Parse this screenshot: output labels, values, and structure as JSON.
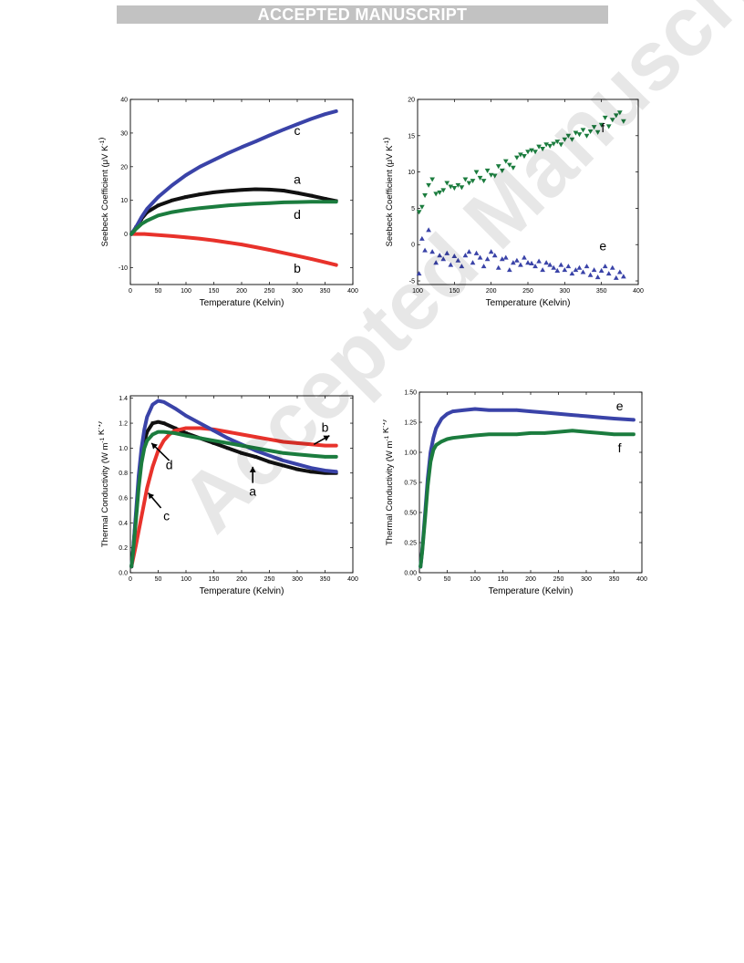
{
  "banner": {
    "text": "ACCEPTED MANUSCRIPT"
  },
  "watermark": {
    "text": "Accepted Manuscript"
  },
  "chart_data": [
    {
      "type": "line",
      "xlabel": "Temperature (Kelvin)",
      "ylabel": "Seebeck Coefficient (μV K⁻¹)",
      "xlim": [
        0,
        400
      ],
      "ylim": [
        -15,
        40
      ],
      "xticks": [
        0,
        50,
        100,
        150,
        200,
        250,
        300,
        350,
        400
      ],
      "yticks": [
        -10,
        0,
        10,
        20,
        30,
        40
      ],
      "series": [
        {
          "name": "a",
          "color": "#111111",
          "marker": "square",
          "x": [
            2,
            10,
            20,
            30,
            50,
            75,
            100,
            125,
            150,
            175,
            200,
            225,
            250,
            275,
            300,
            325,
            350,
            370
          ],
          "y": [
            0,
            2,
            4.5,
            6.5,
            8.5,
            10,
            11,
            11.8,
            12.4,
            12.8,
            13.1,
            13.3,
            13.2,
            12.9,
            12.2,
            11.4,
            10.5,
            9.8
          ]
        },
        {
          "name": "b",
          "color": "#e8322b",
          "marker": "circle",
          "x": [
            2,
            25,
            50,
            75,
            100,
            125,
            150,
            175,
            200,
            225,
            250,
            275,
            300,
            325,
            350,
            370
          ],
          "y": [
            0,
            0,
            -0.3,
            -0.6,
            -1,
            -1.4,
            -1.9,
            -2.5,
            -3.1,
            -3.9,
            -4.7,
            -5.6,
            -6.5,
            -7.4,
            -8.4,
            -9.2
          ]
        },
        {
          "name": "c",
          "color": "#3a43a8",
          "marker": "triangle-up",
          "x": [
            2,
            10,
            20,
            30,
            50,
            75,
            100,
            125,
            150,
            175,
            200,
            225,
            250,
            275,
            300,
            325,
            350,
            370
          ],
          "y": [
            0,
            2,
            5,
            7.5,
            11,
            14.5,
            17.5,
            20,
            22,
            24,
            25.8,
            27.5,
            29.3,
            31,
            32.6,
            34.2,
            35.6,
            36.5
          ]
        },
        {
          "name": "d",
          "color": "#1b7c3e",
          "marker": "triangle-down",
          "x": [
            2,
            10,
            20,
            30,
            50,
            75,
            100,
            125,
            150,
            175,
            200,
            225,
            250,
            275,
            300,
            325,
            350,
            370
          ],
          "y": [
            0,
            1.5,
            3,
            4,
            5.5,
            6.5,
            7.2,
            7.7,
            8.1,
            8.5,
            8.8,
            9,
            9.2,
            9.4,
            9.5,
            9.6,
            9.6,
            9.6
          ]
        }
      ],
      "labels": [
        {
          "text": "c",
          "x": 300,
          "y": 29.5
        },
        {
          "text": "a",
          "x": 300,
          "y": 15
        },
        {
          "text": "d",
          "x": 300,
          "y": 4.5
        },
        {
          "text": "b",
          "x": 300,
          "y": -11.5
        }
      ]
    },
    {
      "type": "scatter",
      "xlabel": "Temperature (Kelvin)",
      "ylabel": "Seebeck Coefficient (μV K⁻¹)",
      "xlim": [
        100,
        400
      ],
      "ylim": [
        -5.5,
        20
      ],
      "xticks": [
        100,
        150,
        200,
        250,
        300,
        350,
        400
      ],
      "yticks": [
        -5,
        0,
        5,
        10,
        15,
        20
      ],
      "series": [
        {
          "name": "f",
          "color": "#1b7c3e",
          "marker": "triangle-down",
          "x": [
            102,
            106,
            110,
            115,
            120,
            125,
            130,
            135,
            140,
            145,
            150,
            155,
            160,
            165,
            170,
            175,
            180,
            185,
            190,
            195,
            200,
            205,
            210,
            215,
            220,
            225,
            230,
            235,
            240,
            245,
            250,
            255,
            260,
            265,
            270,
            275,
            280,
            285,
            290,
            295,
            300,
            305,
            310,
            315,
            320,
            325,
            330,
            335,
            340,
            345,
            350,
            355,
            360,
            365,
            370,
            375,
            380
          ],
          "y": [
            4.5,
            5.2,
            6.8,
            8.2,
            9.0,
            7.0,
            7.2,
            7.5,
            8.5,
            8.0,
            7.8,
            8.2,
            7.9,
            9.0,
            8.5,
            8.8,
            10.0,
            9.2,
            8.8,
            10.2,
            9.6,
            9.5,
            10.8,
            10.2,
            11.5,
            11.0,
            10.6,
            12.0,
            12.4,
            12.2,
            12.8,
            13.0,
            12.8,
            13.5,
            13.2,
            13.8,
            13.6,
            13.9,
            14.2,
            13.8,
            14.5,
            15.0,
            14.5,
            15.4,
            15.2,
            15.8,
            15.0,
            15.6,
            16.2,
            15.5,
            16.5,
            17.5,
            16.3,
            17.2,
            17.8,
            18.2,
            17.0
          ]
        },
        {
          "name": "e",
          "color": "#3a43a8",
          "marker": "triangle-up",
          "x": [
            102,
            106,
            110,
            115,
            120,
            125,
            130,
            135,
            140,
            145,
            150,
            155,
            160,
            165,
            170,
            175,
            180,
            185,
            190,
            195,
            200,
            205,
            210,
            215,
            220,
            225,
            230,
            235,
            240,
            245,
            250,
            255,
            260,
            265,
            270,
            275,
            280,
            285,
            290,
            295,
            300,
            305,
            310,
            315,
            320,
            325,
            330,
            335,
            340,
            345,
            350,
            355,
            360,
            365,
            370,
            375,
            380
          ],
          "y": [
            -4.0,
            0.8,
            -0.8,
            2.0,
            -1.0,
            -2.5,
            -1.5,
            -2.0,
            -1.2,
            -2.8,
            -1.6,
            -2.2,
            -3.0,
            -1.5,
            -1.0,
            -2.5,
            -1.2,
            -1.8,
            -3.0,
            -2.0,
            -1.0,
            -1.5,
            -3.2,
            -2.0,
            -1.8,
            -3.5,
            -2.5,
            -2.2,
            -2.8,
            -1.8,
            -2.5,
            -2.6,
            -3.0,
            -2.3,
            -3.5,
            -2.5,
            -2.8,
            -3.2,
            -3.6,
            -2.8,
            -3.5,
            -3.0,
            -4.0,
            -3.5,
            -3.2,
            -3.8,
            -3.0,
            -4.2,
            -3.5,
            -4.5,
            -3.6,
            -3.0,
            -4.0,
            -3.2,
            -4.6,
            -3.8,
            -4.4
          ]
        }
      ],
      "labels": [
        {
          "text": "f",
          "x": 352,
          "y": 15.5
        },
        {
          "text": "e",
          "x": 352,
          "y": -0.8
        }
      ]
    },
    {
      "type": "line",
      "xlabel": "Temperature (Kelvin)",
      "ylabel": "Thermal Conductivity (W m⁻¹ K⁻¹)",
      "xlim": [
        0,
        400
      ],
      "ylim": [
        0,
        1.42
      ],
      "xticks": [
        0,
        50,
        100,
        150,
        200,
        250,
        300,
        350,
        400
      ],
      "yticks": [
        "0.0",
        "0.2",
        "0.4",
        "0.6",
        "0.8",
        "1.0",
        "1.2",
        "1.4"
      ],
      "series": [
        {
          "name": "a",
          "color": "#111111",
          "marker": "square",
          "x": [
            2,
            5,
            10,
            15,
            20,
            25,
            30,
            40,
            50,
            60,
            80,
            100,
            125,
            150,
            175,
            200,
            225,
            250,
            275,
            300,
            325,
            350,
            370
          ],
          "y": [
            0.05,
            0.18,
            0.45,
            0.72,
            0.92,
            1.05,
            1.13,
            1.2,
            1.21,
            1.2,
            1.16,
            1.12,
            1.08,
            1.04,
            1.0,
            0.96,
            0.93,
            0.89,
            0.86,
            0.83,
            0.81,
            0.8,
            0.8
          ]
        },
        {
          "name": "b",
          "color": "#e8322b",
          "marker": "circle",
          "x": [
            2,
            10,
            20,
            30,
            40,
            50,
            60,
            70,
            80,
            100,
            125,
            150,
            175,
            200,
            225,
            250,
            275,
            300,
            325,
            350,
            370
          ],
          "y": [
            0.05,
            0.22,
            0.45,
            0.68,
            0.85,
            0.98,
            1.06,
            1.11,
            1.14,
            1.16,
            1.16,
            1.15,
            1.13,
            1.11,
            1.09,
            1.07,
            1.05,
            1.04,
            1.03,
            1.02,
            1.02
          ]
        },
        {
          "name": "c",
          "color": "#3a43a8",
          "marker": "triangle-up",
          "x": [
            2,
            5,
            10,
            15,
            20,
            25,
            30,
            40,
            50,
            60,
            80,
            100,
            125,
            150,
            175,
            200,
            225,
            250,
            275,
            300,
            325,
            350,
            370
          ],
          "y": [
            0.05,
            0.18,
            0.48,
            0.78,
            1.0,
            1.15,
            1.25,
            1.35,
            1.38,
            1.37,
            1.32,
            1.26,
            1.2,
            1.14,
            1.08,
            1.03,
            0.98,
            0.94,
            0.9,
            0.87,
            0.84,
            0.82,
            0.81
          ]
        },
        {
          "name": "d",
          "color": "#1b7c3e",
          "marker": "triangle-down",
          "x": [
            2,
            5,
            10,
            15,
            20,
            25,
            30,
            40,
            50,
            60,
            80,
            100,
            125,
            150,
            175,
            200,
            225,
            250,
            275,
            300,
            325,
            350,
            370
          ],
          "y": [
            0.05,
            0.17,
            0.42,
            0.68,
            0.88,
            1.0,
            1.06,
            1.11,
            1.13,
            1.13,
            1.12,
            1.1,
            1.08,
            1.06,
            1.04,
            1.02,
            1.0,
            0.98,
            0.96,
            0.95,
            0.94,
            0.93,
            0.93
          ]
        }
      ],
      "labels": [
        {
          "text": "b",
          "x": 350,
          "y": 1.13
        },
        {
          "text": "d",
          "x": 70,
          "y": 0.83
        },
        {
          "text": "a",
          "x": 220,
          "y": 0.62
        },
        {
          "text": "c",
          "x": 65,
          "y": 0.42
        }
      ],
      "arrows": [
        {
          "from": [
            330,
            1.03
          ],
          "to": [
            358,
            1.1
          ]
        },
        {
          "from": [
            70,
            0.9
          ],
          "to": [
            38,
            1.04
          ]
        },
        {
          "from": [
            220,
            0.72
          ],
          "to": [
            220,
            0.85
          ]
        },
        {
          "from": [
            55,
            0.52
          ],
          "to": [
            32,
            0.64
          ]
        }
      ]
    },
    {
      "type": "line",
      "xlabel": "Temperature (Kelvin)",
      "ylabel": "Thermal Conductivity (W m⁻¹ K⁻¹)",
      "xlim": [
        0,
        400
      ],
      "ylim": [
        0,
        1.5
      ],
      "xticks": [
        0,
        50,
        100,
        150,
        200,
        250,
        300,
        350,
        400
      ],
      "yticks": [
        "0.00",
        "0.25",
        "0.50",
        "0.75",
        "1.00",
        "1.25",
        "1.50"
      ],
      "series": [
        {
          "name": "e",
          "color": "#3a43a8",
          "marker": "triangle-up",
          "x": [
            2,
            5,
            10,
            15,
            20,
            25,
            30,
            40,
            50,
            60,
            80,
            100,
            125,
            150,
            175,
            200,
            225,
            250,
            275,
            300,
            325,
            350,
            385
          ],
          "y": [
            0.05,
            0.18,
            0.48,
            0.78,
            1.0,
            1.12,
            1.2,
            1.28,
            1.32,
            1.34,
            1.35,
            1.36,
            1.35,
            1.35,
            1.35,
            1.34,
            1.33,
            1.32,
            1.31,
            1.3,
            1.29,
            1.28,
            1.27
          ]
        },
        {
          "name": "f",
          "color": "#1b7c3e",
          "marker": "triangle-down",
          "x": [
            2,
            5,
            10,
            15,
            20,
            25,
            30,
            40,
            50,
            60,
            80,
            100,
            125,
            150,
            175,
            200,
            225,
            250,
            275,
            300,
            325,
            350,
            385
          ],
          "y": [
            0.05,
            0.17,
            0.44,
            0.72,
            0.92,
            1.02,
            1.06,
            1.09,
            1.11,
            1.12,
            1.13,
            1.14,
            1.15,
            1.15,
            1.15,
            1.16,
            1.16,
            1.17,
            1.18,
            1.17,
            1.16,
            1.15,
            1.15
          ]
        }
      ],
      "labels": [
        {
          "text": "e",
          "x": 360,
          "y": 1.35
        },
        {
          "text": "f",
          "x": 360,
          "y": 1.0
        }
      ]
    }
  ]
}
